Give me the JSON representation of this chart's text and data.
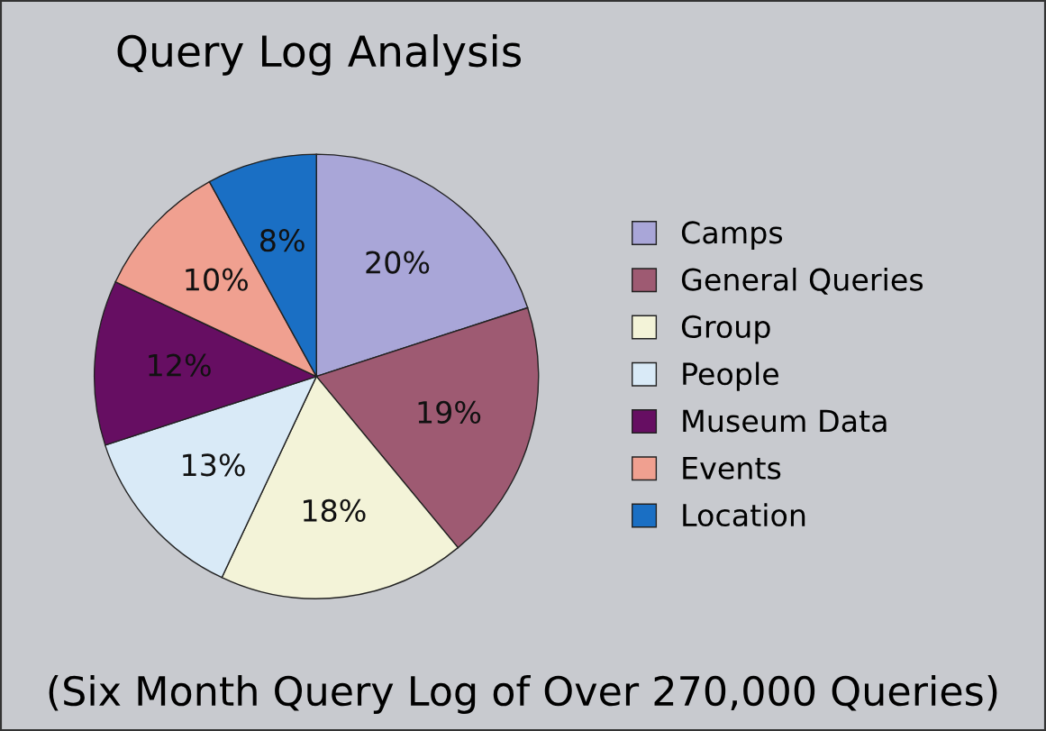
{
  "chart_data": {
    "type": "pie",
    "title": "Query Log Analysis",
    "subtitle": "(Six Month Query Log of Over 270,000 Queries)",
    "categories": [
      "Camps",
      "General Queries",
      "Group",
      "People",
      "Museum Data",
      "Events",
      "Location"
    ],
    "values": [
      20,
      19,
      18,
      13,
      12,
      10,
      8
    ],
    "value_labels": [
      "20%",
      "19%",
      "18%",
      "13%",
      "12%",
      "10%",
      "8%"
    ],
    "colors": [
      "#a9a6d8",
      "#9e5a72",
      "#f3f3d8",
      "#d9eaf7",
      "#660e62",
      "#f0a090",
      "#1a6fc4"
    ],
    "legend": "right"
  }
}
